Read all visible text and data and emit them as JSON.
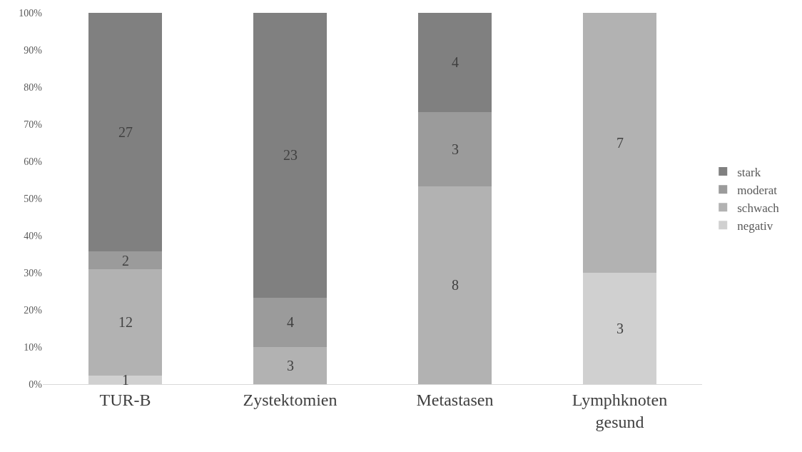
{
  "chart_data": {
    "type": "bar",
    "stacked": true,
    "categories": [
      "TUR-B",
      "Zystektomien",
      "Metastasen",
      "Lymphknoten gesund"
    ],
    "series": [
      {
        "name": "negativ",
        "color": "#d0d0d0",
        "values": [
          2.4,
          0,
          0,
          30
        ]
      },
      {
        "name": "schwach",
        "color": "#b2b2b2",
        "values": [
          28.6,
          10,
          53.3,
          70
        ]
      },
      {
        "name": "moderat",
        "color": "#9b9b9b",
        "values": [
          4.7,
          13.3,
          20,
          0
        ]
      },
      {
        "name": "stark",
        "color": "#808080",
        "values": [
          64.3,
          76.7,
          26.7,
          0
        ]
      }
    ],
    "annotations": [
      "1",
      "12",
      "2",
      "27",
      "3",
      "4",
      "23",
      "8",
      "3",
      "4",
      "3",
      "7"
    ],
    "ylim": [
      0,
      100
    ],
    "yticks": [
      {
        "value": 0,
        "label": "0%"
      },
      {
        "value": 10,
        "label": "10%"
      },
      {
        "value": 20,
        "label": "20%"
      },
      {
        "value": 30,
        "label": "30%"
      },
      {
        "value": 40,
        "label": "40%"
      },
      {
        "value": 50,
        "label": "50%"
      },
      {
        "value": 60,
        "label": "60%"
      },
      {
        "value": 70,
        "label": "70%"
      },
      {
        "value": 80,
        "label": "80%"
      },
      {
        "value": 90,
        "label": "90%"
      },
      {
        "value": 100,
        "label": "100%"
      }
    ],
    "grid": false,
    "legend": "right"
  }
}
